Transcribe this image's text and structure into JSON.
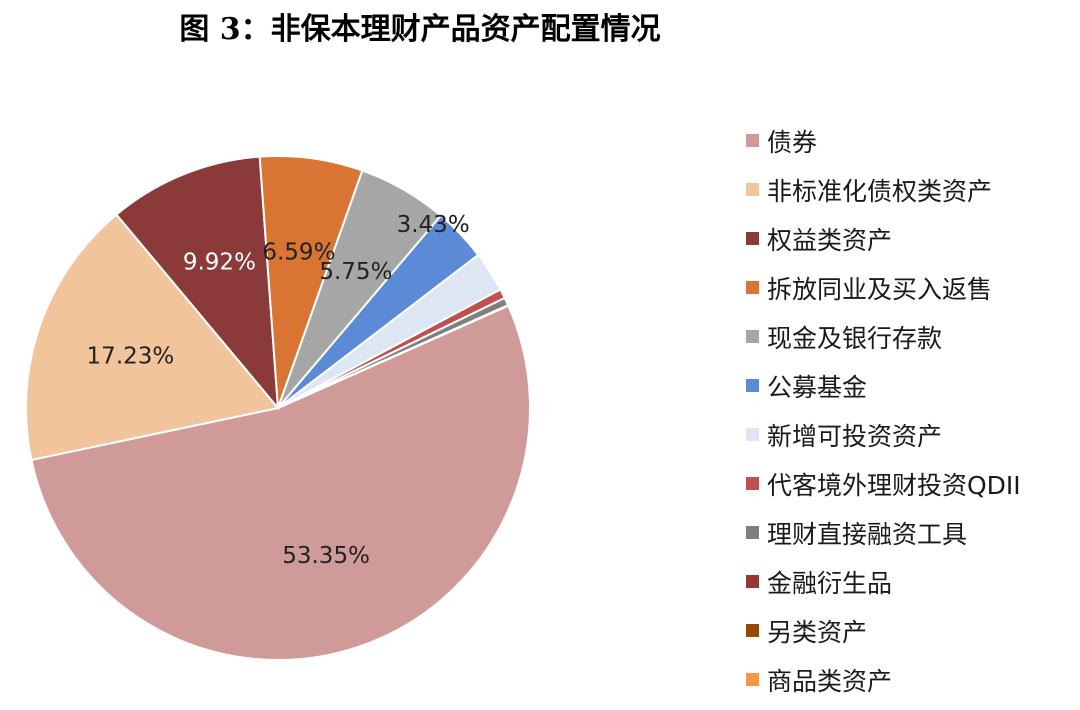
{
  "title": "图 3：非保本理财产品资产配置情况",
  "chart_data": {
    "type": "pie",
    "title": "图 3：非保本理财产品资产配置情况",
    "legend_position": "right",
    "slices": [
      {
        "label": "债券",
        "value": 53.35,
        "display": "53.35%",
        "color": "#cf9a98"
      },
      {
        "label": "非标准化债权类资产",
        "value": 17.23,
        "display": "17.23%",
        "color": "#f2c49c"
      },
      {
        "label": "权益类资产",
        "value": 9.92,
        "display": "9.92%",
        "color": "#8b3a3a"
      },
      {
        "label": "拆放同业及买入返售",
        "value": 6.59,
        "display": "6.59%",
        "color": "#d97432"
      },
      {
        "label": "现金及银行存款",
        "value": 5.75,
        "display": "5.75%",
        "color": "#a6a6a6"
      },
      {
        "label": "公募基金",
        "value": 3.43,
        "display": "3.43%",
        "color": "#5b8ad6"
      },
      {
        "label": "新增可投资资产",
        "value": 2.6,
        "display": "",
        "color": "#dde6f3"
      },
      {
        "label": "代客境外理财投资QDII",
        "value": 0.6,
        "display": "",
        "color": "#c0504d"
      },
      {
        "label": "理财直接融资工具",
        "value": 0.5,
        "display": "",
        "color": "#7f7f7f"
      },
      {
        "label": "金融衍生品",
        "value": 0.02,
        "display": "",
        "color": "#953735"
      },
      {
        "label": "另类资产",
        "value": 0.01,
        "display": "",
        "color": "#974706"
      },
      {
        "label": "商品类资产",
        "value": 0.01,
        "display": "",
        "color": "#f79646"
      }
    ]
  }
}
